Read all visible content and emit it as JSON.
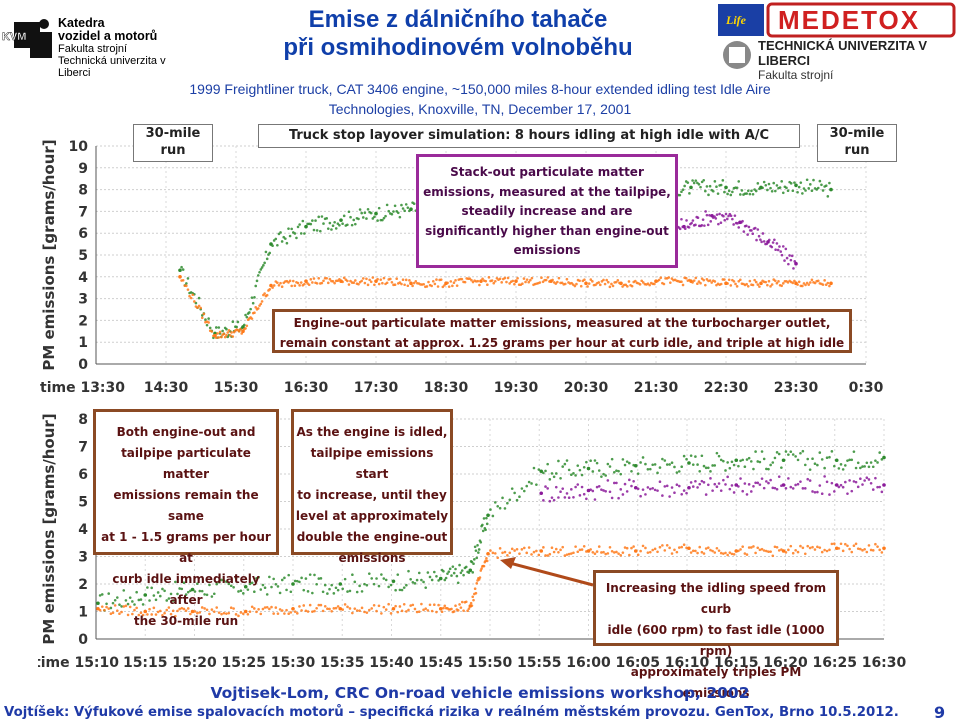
{
  "header": {
    "left_logo": {
      "abbr": "KVM",
      "line1": "Katedra",
      "line2": "vozidel a motorů",
      "line3": "Fakulta strojní",
      "line4": "Technická univerzita v Liberci"
    },
    "title_line1": "Emise z dálničního tahače",
    "title_line2": "při osmihodinovém volnoběhu",
    "right_logo": {
      "brand": "MEDETOX",
      "university": "TECHNICKÁ UNIVERZITA V LIBERCI",
      "faculty": "Fakulta strojní",
      "life_label": "Life"
    },
    "subtitle_line1": "1999 Freightliner truck, CAT 3406 engine, ~150,000 miles 8-hour extended idling test Idle Aire",
    "subtitle_line2": "Technologies, Knoxville, TN, December 17, 2001"
  },
  "colors": {
    "title": "#0f3faa",
    "engine_out": "#ff7a1a",
    "tailpipe_green": "#2e8b2e",
    "tailpipe_purple": "#8b1a9a",
    "annotation_border": "#8b4a24"
  },
  "chart_data": [
    {
      "type": "scatter",
      "ylabel": "PM emissions [grams/hour]",
      "ylim": [
        0,
        10
      ],
      "yticks": [
        "0",
        "1",
        "2",
        "3",
        "4",
        "5",
        "6",
        "7",
        "8",
        "9",
        "10"
      ],
      "xticks": [
        "time 13:30",
        "14:30",
        "15:30",
        "16:30",
        "17:30",
        "18:30",
        "19:30",
        "20:30",
        "21:30",
        "22:30",
        "23:30",
        "0:30"
      ],
      "box_left": "30-mile run",
      "box_center": "Truck stop layover simulation: 8 hours idling at high idle with A/C",
      "box_right": "30-mile run",
      "annotation_top": "Stack-out particulate matter emissions, measured at the tailpipe, steadily increase and are significantly higher than engine-out emissions",
      "annotation_top_lines": [
        "Stack-out particulate matter",
        "emissions, measured at the tailpipe,",
        "steadily increase and are",
        "significantly higher than engine-out",
        "emissions"
      ],
      "annotation_bottom_lines": [
        "Engine-out particulate matter emissions, measured at the turbocharger outlet,",
        "remain constant at approx. 1.25 grams per hour at curb idle, and triple at high idle"
      ],
      "series": [
        {
          "name": "",
          "color": "#2e8b2e",
          "x": [
            14.7,
            15.2,
            15.6,
            16.0,
            16.5,
            17.0,
            17.5,
            18.0,
            18.5,
            19.0,
            19.5,
            20.0,
            20.5,
            21.0,
            21.5,
            22.0,
            22.5,
            23.0,
            23.5,
            24.0
          ],
          "y": [
            4.3,
            1.4,
            1.7,
            5.5,
            6.3,
            6.6,
            6.9,
            7.1,
            7.3,
            7.5,
            7.5,
            7.6,
            7.8,
            7.9,
            8.0,
            8.1,
            8.1,
            8.1,
            8.2,
            8.0
          ]
        },
        {
          "name": "",
          "color": "#8b1a9a",
          "x": [
            19.9,
            20.3,
            20.7,
            21.1,
            21.5,
            21.9,
            22.3,
            22.7,
            23.1,
            23.5
          ],
          "y": [
            5.6,
            6.0,
            6.4,
            7.0,
            6.7,
            6.3,
            6.8,
            6.5,
            5.6,
            4.6
          ]
        },
        {
          "name": "",
          "color": "#ff7a1a",
          "x": [
            14.7,
            15.2,
            15.6,
            16.0,
            16.5,
            17.0,
            17.5,
            18.0,
            18.5,
            19.0,
            19.5,
            20.0,
            20.5,
            21.0,
            21.5,
            22.0,
            22.5,
            23.0,
            23.5,
            24.0
          ],
          "y": [
            4.0,
            1.3,
            1.5,
            3.6,
            3.8,
            3.8,
            3.8,
            3.7,
            3.7,
            3.8,
            3.8,
            3.8,
            3.7,
            3.7,
            3.8,
            3.8,
            3.7,
            3.7,
            3.7,
            3.7
          ]
        }
      ]
    },
    {
      "type": "scatter",
      "ylabel": "PM emissions [grams/hour]",
      "ylim": [
        0,
        8
      ],
      "yticks": [
        "0",
        "1",
        "2",
        "3",
        "4",
        "5",
        "6",
        "7",
        "8"
      ],
      "xticks": [
        "time 15:10",
        "15:15",
        "15:20",
        "15:25",
        "15:30",
        "15:35",
        "15:40",
        "15:45",
        "15:50",
        "15:55",
        "16:00",
        "16:05",
        "16:10",
        "16:15",
        "16:20",
        "16:25",
        "16:30"
      ],
      "annotation_left_lines": [
        "Both engine-out and",
        "tailpipe particulate matter",
        "emissions remain the same",
        "at 1 - 1.5 grams per hour at",
        "curb idle immediately after",
        "the 30-mile run"
      ],
      "annotation_middle_lines": [
        "As the engine is idled,",
        "tailpipe emissions start",
        "to increase, until they",
        "level at approximately",
        "double the engine-out",
        "emissions"
      ],
      "annotation_right_lines": [
        "Increasing the idling speed from curb",
        "idle (600 rpm) to fast idle (1000 rpm)",
        "approximately triples PM emissions"
      ],
      "series": [
        {
          "name": "",
          "color": "#2e8b2e",
          "x": [
            15.17,
            15.25,
            15.33,
            15.42,
            15.5,
            15.58,
            15.67,
            15.75,
            15.8,
            15.83,
            15.92,
            16.0,
            16.08,
            16.17,
            16.25,
            16.33,
            16.42,
            16.5
          ],
          "y": [
            1.3,
            1.6,
            1.8,
            1.9,
            2.0,
            2.0,
            2.1,
            2.2,
            2.5,
            4.5,
            6.1,
            6.2,
            6.3,
            6.4,
            6.5,
            6.5,
            6.5,
            6.6
          ]
        },
        {
          "name": "",
          "color": "#8b1a9a",
          "x": [
            15.92,
            16.0,
            16.08,
            16.17,
            16.25,
            16.33,
            16.42,
            16.5
          ],
          "y": [
            5.3,
            5.4,
            5.5,
            5.5,
            5.6,
            5.6,
            5.6,
            5.6
          ]
        },
        {
          "name": "",
          "color": "#ff7a1a",
          "x": [
            15.17,
            15.25,
            15.33,
            15.42,
            15.5,
            15.58,
            15.67,
            15.75,
            15.8,
            15.83,
            15.92,
            16.0,
            16.08,
            16.17,
            16.25,
            16.33,
            16.42,
            16.5
          ],
          "y": [
            1.1,
            1.0,
            1.0,
            1.0,
            1.1,
            1.1,
            1.1,
            1.1,
            1.2,
            3.1,
            3.2,
            3.2,
            3.2,
            3.3,
            3.2,
            3.2,
            3.3,
            3.3
          ]
        }
      ]
    }
  ],
  "footer": {
    "line1": "Vojtisek-Lom, CRC On-road vehicle emissions workshop, 2002",
    "line2": "Vojtíšek: Výfukové emise spalovacích motorů – specifická rizika v reálném městském provozu. GenTox, Brno 10.5.2012.",
    "page_number": "9"
  }
}
